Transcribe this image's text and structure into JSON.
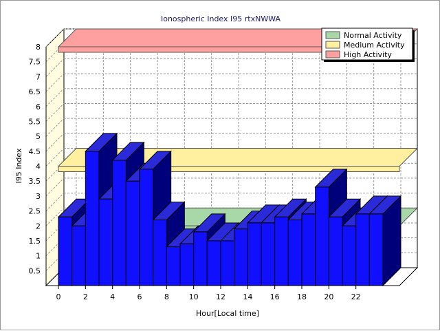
{
  "chart_data": {
    "type": "bar",
    "title": "Ionospheric Index I95 rtxNWWA",
    "xlabel": "Hour[Local time]",
    "ylabel": "I95 Index",
    "ylim": [
      0,
      8
    ],
    "yticks": [
      "0.5",
      "1",
      "1.5",
      "2",
      "2.5",
      "3",
      "3.5",
      "4",
      "4.5",
      "5",
      "5.5",
      "6",
      "6.5",
      "7",
      "7.5",
      "8"
    ],
    "xticks": [
      "0",
      "2",
      "4",
      "6",
      "8",
      "10",
      "12",
      "14",
      "16",
      "18",
      "20",
      "22"
    ],
    "x": [
      0,
      1,
      2,
      3,
      4,
      5,
      6,
      7,
      8,
      9,
      10,
      11,
      12,
      13,
      14,
      15,
      16,
      17,
      18,
      19,
      20,
      21,
      22,
      23
    ],
    "values": [
      2.3,
      2.0,
      4.5,
      2.9,
      4.2,
      3.5,
      3.9,
      2.2,
      1.3,
      1.4,
      1.8,
      1.5,
      1.5,
      1.9,
      2.1,
      2.1,
      2.3,
      2.2,
      2.4,
      3.3,
      2.3,
      2.0,
      2.4,
      2.4
    ],
    "bar_color": "#1010ff",
    "bands": [
      {
        "name": "Normal Activity",
        "level": 2.0,
        "color": "#a8d8a8"
      },
      {
        "name": "Medium Activity",
        "level": 4.0,
        "color": "#fff0a0"
      },
      {
        "name": "High Activity",
        "level": 8.0,
        "color": "#ffa0a0"
      }
    ],
    "legend_position": "top-right",
    "grid": true
  }
}
